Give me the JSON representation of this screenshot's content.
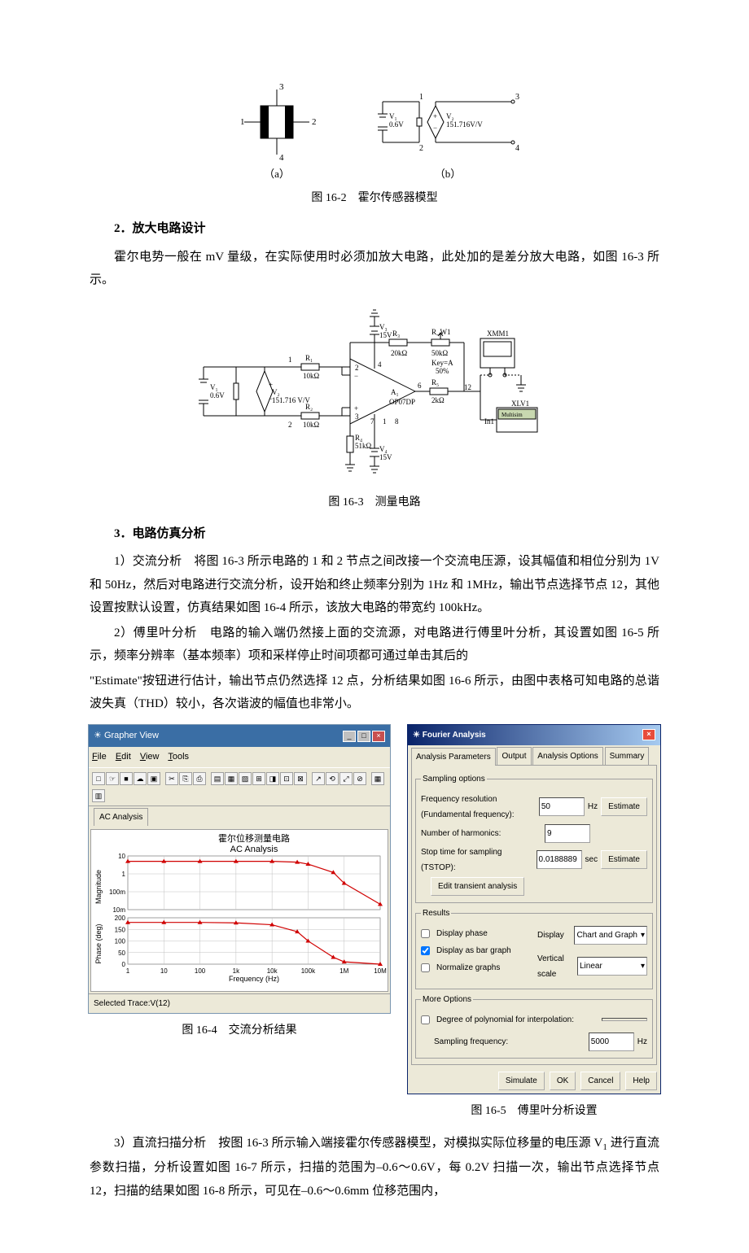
{
  "fig162": {
    "caption": "图 16-2　霍尔传感器模型",
    "block_a": {
      "pins": [
        "1",
        "2",
        "3",
        "4"
      ],
      "label": "（a）"
    },
    "block_b": {
      "pins": [
        "1",
        "2",
        "3",
        "4"
      ],
      "v1": "V₁\n0.6V",
      "v2": "V₂\n151.716V/V",
      "label": "（b）"
    }
  },
  "h2": "2．放大电路设计",
  "p2": "霍尔电势一般在 mV 量级，在实际使用时必须加放大电路，此处加的是差分放大电路，如图 16-3 所示。",
  "fig163": {
    "caption": "图 16-3　测量电路",
    "labels": {
      "V1": "V₁",
      "V1val": "0.6V",
      "V2": "V₂",
      "V2val": "151.716 V/V",
      "V3": "V₃",
      "V3val": "15V",
      "V4": "V₄",
      "V4val": "15V",
      "R1": "R₁",
      "R1val": "10kΩ",
      "R2": "R₂",
      "R2val": "10kΩ",
      "R3": "R₃",
      "R3val": "20kΩ",
      "R4": "R₄",
      "R4val": "51kΩ",
      "R5": "R₅",
      "R5val": "2kΩ",
      "RW1": "R_W1",
      "RW1val": "50kΩ",
      "Key": "Key=A\n50%",
      "A1": "A₁",
      "OP": "OP07DP",
      "XMM1": "XMM1",
      "XLV1": "XLV1",
      "In1": "In1",
      "Multisim": "Multisim"
    }
  },
  "h3": "3．电路仿真分析",
  "p3a": "1）交流分析　将图 16-3 所示电路的 1 和 2 节点之间改接一个交流电压源，设其幅值和相位分别为 1V 和 50Hz，然后对电路进行交流分析，设开始和终止频率分别为 1Hz 和 1MHz，输出节点选择节点 12，其他设置按默认设置，仿真结果如图 16-4 所示，该放大电路的带宽约 100kHz。",
  "p3b_1": "2）傅里叶分析　电路的输入端仍然接上面的交流源，对电路进行傅里叶分析，其设置如图 16-5 所示，频率分辨率（基本频率）项和采样停止时间项都可通过单击其后的",
  "p3b_2": "\"Estimate\"按钮进行估计，输出节点仍然选择 12 点，分析结果如图 16-6 所示，由图中表格可知电路的总谐波失真（THD）较小，各次谐波的幅值也非常小。",
  "grapher": {
    "title": "Grapher View",
    "menu": [
      "File",
      "Edit",
      "View",
      "Tools"
    ],
    "toolbar_icons": [
      "□",
      "☞",
      "■",
      "☁",
      "▣",
      "",
      "✂",
      "⎘",
      "⎙",
      "",
      "▤",
      "▦",
      "▨",
      "⊞",
      "◨",
      "⊡",
      "⊠",
      "",
      "↗",
      "⟲",
      "⤢",
      "⊘",
      "",
      "▦",
      "▥"
    ],
    "tab": "AC Analysis",
    "chart": {
      "title1": "霍尔位移测量电路",
      "title2": "AC Analysis",
      "ylabel1": "Magnitude",
      "ylabel2": "Phase (deg)",
      "xlabel": "Frequency (Hz)",
      "xticks": [
        "1",
        "10",
        "100",
        "1k",
        "10k",
        "100k",
        "1M",
        "10M"
      ],
      "mag_yticks": [
        "10",
        "1",
        "100m",
        "10m"
      ],
      "phase_yticks": [
        "200",
        "150",
        "100",
        "50",
        "0"
      ],
      "mag_data": [
        [
          1,
          5
        ],
        [
          10,
          5
        ],
        [
          100,
          5
        ],
        [
          1000,
          5
        ],
        [
          10000,
          5
        ],
        [
          50000,
          4.5
        ],
        [
          100000,
          3.5
        ],
        [
          500000,
          1.2
        ],
        [
          1000000,
          0.3
        ],
        [
          10000000,
          0.02
        ]
      ],
      "phase_data": [
        [
          1,
          180
        ],
        [
          10,
          180
        ],
        [
          100,
          180
        ],
        [
          1000,
          178
        ],
        [
          10000,
          170
        ],
        [
          50000,
          140
        ],
        [
          100000,
          100
        ],
        [
          500000,
          30
        ],
        [
          1000000,
          10
        ],
        [
          10000000,
          0
        ]
      ],
      "line_color": "#d00000",
      "grid_color": "#c0c0c0",
      "bg": "#ffffff"
    },
    "status": "Selected Trace:V(12)"
  },
  "fig164_cap": "图 16-4　交流分析结果",
  "fdialog": {
    "title": "Fourier Analysis",
    "tabs": [
      "Analysis Parameters",
      "Output",
      "Analysis Options",
      "Summary"
    ],
    "sampling": {
      "legend": "Sampling options",
      "freq_label": "Frequency resolution (Fundamental frequency):",
      "freq_val": "50",
      "freq_unit": "Hz",
      "est1": "Estimate",
      "harm_label": "Number of harmonics:",
      "harm_val": "9",
      "tstop_label": "Stop time for sampling (TSTOP):",
      "tstop_val": "0.0188889",
      "tstop_unit": "sec",
      "est2": "Estimate",
      "edit": "Edit transient analysis"
    },
    "results": {
      "legend": "Results",
      "disp_phase": "Display phase",
      "disp_bar": "Display as bar graph",
      "normalize": "Normalize graphs",
      "display_label": "Display",
      "display_val": "Chart and Graph",
      "vscale_label": "Vertical scale",
      "vscale_val": "Linear"
    },
    "more": {
      "legend": "More Options",
      "poly_label": "Degree of polynomial for interpolation:",
      "poly_val": "",
      "sfreq_label": "Sampling frequency:",
      "sfreq_val": "5000",
      "sfreq_unit": "Hz"
    },
    "buttons": [
      "Simulate",
      "OK",
      "Cancel",
      "Help"
    ]
  },
  "fig165_cap": "图 16-5　傅里叶分析设置",
  "p4_1": "3）直流扫描分析　按图 16-3 所示输入端接霍尔传感器模型，对模拟实际位移量的电压源 V",
  "p4_sub": "1",
  "p4_2": " 进行直流参数扫描，分析设置如图 16-7 所示，扫描的范围为–0.6～0.6V，每 0.2V 扫描一次，输出节点选择节点 12，扫描的结果如图 16-8 所示，可见在–0.6～0.6mm 位移范围内，"
}
